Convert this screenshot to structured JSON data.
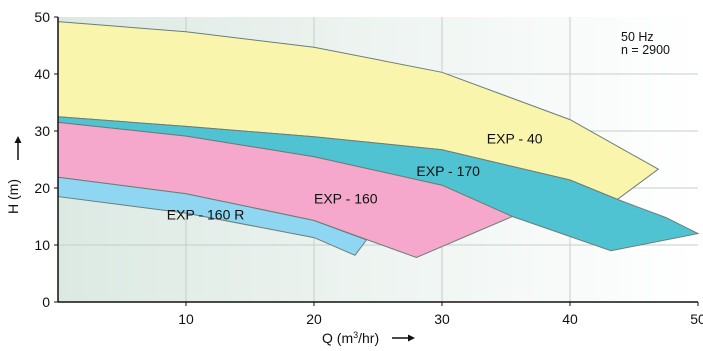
{
  "chart_data": {
    "type": "area",
    "xlabel": "Q (m³/hr)",
    "ylabel": "H (m)",
    "xlim": [
      0,
      50
    ],
    "ylim": [
      0,
      50
    ],
    "xticks": [
      10,
      20,
      30,
      40,
      50
    ],
    "yticks": [
      0,
      10,
      20,
      30,
      40,
      50
    ],
    "grid": true,
    "annotations": [
      "50 Hz",
      "n = 2900"
    ],
    "series": [
      {
        "name": "EXP - 40",
        "color": "#faf5ad",
        "upper": [
          [
            0,
            49.2
          ],
          [
            10,
            47.4
          ],
          [
            20,
            44.7
          ],
          [
            30,
            40.3
          ],
          [
            40,
            32.0
          ],
          [
            46.9,
            23.3
          ]
        ],
        "lower": [
          [
            0,
            32.5
          ],
          [
            10,
            30.8
          ],
          [
            20,
            29.0
          ],
          [
            30,
            26.7
          ],
          [
            40,
            21.4
          ],
          [
            43.7,
            18.0
          ]
        ]
      },
      {
        "name": "EXP - 170",
        "color": "#4fc3d1",
        "upper": [
          [
            0,
            32.5
          ],
          [
            10,
            30.8
          ],
          [
            20,
            29.0
          ],
          [
            30,
            26.7
          ],
          [
            40,
            21.4
          ],
          [
            43.7,
            18.0
          ],
          [
            47.5,
            14.8
          ],
          [
            50,
            12.0
          ]
        ],
        "lower": [
          [
            0,
            31.5
          ],
          [
            10,
            29.1
          ],
          [
            20,
            25.5
          ],
          [
            30,
            20.5
          ],
          [
            35.5,
            15.0
          ],
          [
            43.2,
            9.0
          ]
        ]
      },
      {
        "name": "EXP - 160",
        "color": "#f5a8cb",
        "upper": [
          [
            0,
            31.5
          ],
          [
            10,
            29.1
          ],
          [
            20,
            25.5
          ],
          [
            30,
            20.5
          ],
          [
            35.5,
            15.0
          ]
        ],
        "lower": [
          [
            0,
            21.9
          ],
          [
            10,
            19.0
          ],
          [
            20,
            14.3
          ],
          [
            28,
            7.8
          ]
        ]
      },
      {
        "name": "EXP - 160 R",
        "color": "#8fd6f2",
        "upper": [
          [
            0,
            21.9
          ],
          [
            10,
            19.0
          ],
          [
            20,
            14.3
          ],
          [
            24.1,
            10.9
          ]
        ],
        "lower": [
          [
            0,
            18.5
          ],
          [
            10,
            15.6
          ],
          [
            20,
            11.3
          ],
          [
            23.2,
            8.2
          ]
        ]
      }
    ]
  }
}
